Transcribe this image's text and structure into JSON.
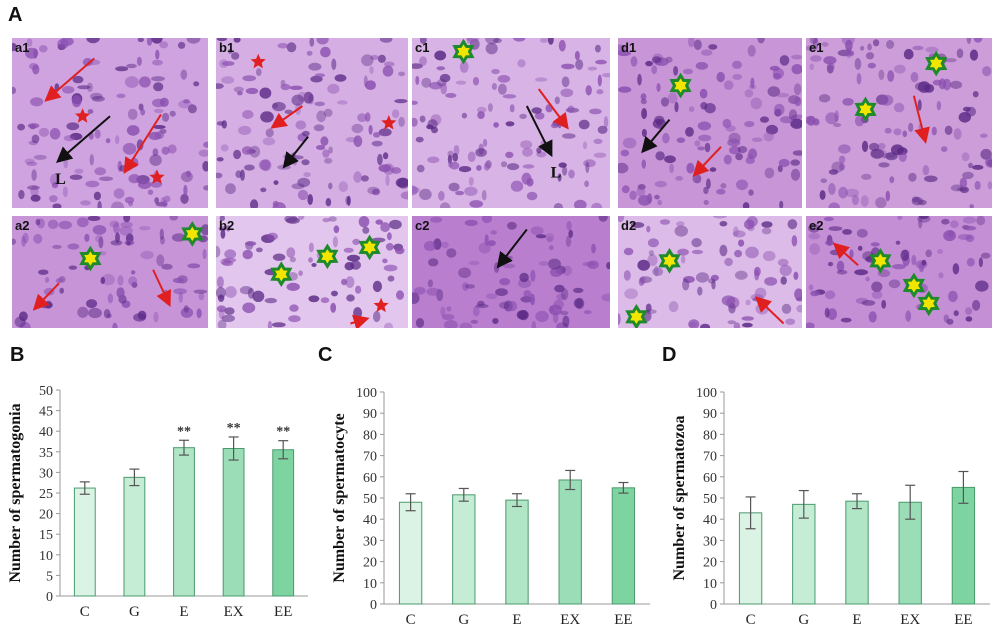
{
  "figure": {
    "panel_letters": [
      "A",
      "B",
      "C",
      "D"
    ],
    "micrographs": [
      {
        "label": "a1",
        "tint": "#cfa3df",
        "annotations": [
          {
            "type": "arrow-red"
          },
          {
            "type": "arrow-red"
          },
          {
            "type": "arrow-black"
          },
          {
            "type": "star-red"
          },
          {
            "type": "star-red"
          },
          {
            "type": "letter",
            "text": "L"
          }
        ]
      },
      {
        "label": "b1",
        "tint": "#d5aee3",
        "annotations": [
          {
            "type": "star-red"
          },
          {
            "type": "star-red"
          },
          {
            "type": "arrow-red"
          },
          {
            "type": "arrow-black"
          }
        ]
      },
      {
        "label": "c1",
        "tint": "#d8b3e5",
        "annotations": [
          {
            "type": "star-green"
          },
          {
            "type": "arrow-red"
          },
          {
            "type": "arrow-black"
          },
          {
            "type": "letter",
            "text": "L"
          }
        ]
      },
      {
        "label": "d1",
        "tint": "#c895d6",
        "annotations": [
          {
            "type": "star-green"
          },
          {
            "type": "arrow-black"
          },
          {
            "type": "arrow-red"
          }
        ]
      },
      {
        "label": "e1",
        "tint": "#cc9dd8",
        "annotations": [
          {
            "type": "star-green"
          },
          {
            "type": "star-green"
          },
          {
            "type": "arrow-red"
          }
        ]
      },
      {
        "label": "a2",
        "tint": "#c794d8",
        "annotations": [
          {
            "type": "star-green"
          },
          {
            "type": "star-green"
          },
          {
            "type": "arrow-red"
          },
          {
            "type": "arrow-red"
          }
        ]
      },
      {
        "label": "b2",
        "tint": "#e3c6ee",
        "annotations": [
          {
            "type": "star-green"
          },
          {
            "type": "star-green"
          },
          {
            "type": "star-green"
          },
          {
            "type": "star-red"
          },
          {
            "type": "arrow-red"
          }
        ]
      },
      {
        "label": "c2",
        "tint": "#b97fce",
        "annotations": [
          {
            "type": "arrow-black"
          }
        ]
      },
      {
        "label": "d2",
        "tint": "#dcbbe8",
        "annotations": [
          {
            "type": "star-green"
          },
          {
            "type": "star-green"
          },
          {
            "type": "arrow-red"
          }
        ]
      },
      {
        "label": "e2",
        "tint": "#c48fd5",
        "annotations": [
          {
            "type": "star-green"
          },
          {
            "type": "star-green"
          },
          {
            "type": "star-green"
          },
          {
            "type": "arrow-red"
          }
        ]
      }
    ],
    "colors": {
      "bar_fill": "#6fcf97",
      "bar_stroke": "#4a9a6c",
      "error_bar": "#555555",
      "axis": "#999999"
    }
  },
  "chart_data": [
    {
      "type": "bar",
      "panel": "B",
      "title": "",
      "xlabel": "",
      "ylabel": "Number of spermatogonia",
      "categories": [
        "C",
        "G",
        "E",
        "EX",
        "EE"
      ],
      "values": [
        26.2,
        28.8,
        36.0,
        35.8,
        35.5
      ],
      "errors": [
        1.5,
        2.0,
        1.8,
        2.8,
        2.2
      ],
      "annotations": [
        "",
        "",
        "**",
        "**",
        "**"
      ],
      "fill_opacity": [
        0.25,
        0.4,
        0.55,
        0.7,
        0.9
      ],
      "ylim": [
        0,
        50
      ],
      "yticks": [
        0,
        5,
        10,
        15,
        20,
        25,
        30,
        35,
        40,
        45,
        50
      ],
      "grid": false
    },
    {
      "type": "bar",
      "panel": "C",
      "title": "",
      "xlabel": "",
      "ylabel": "Number of spermatocyte",
      "categories": [
        "C",
        "G",
        "E",
        "EX",
        "EE"
      ],
      "values": [
        48,
        51.5,
        49,
        58.5,
        54.8
      ],
      "errors": [
        4,
        3,
        3,
        4.5,
        2.5
      ],
      "annotations": [
        "",
        "",
        "",
        "",
        ""
      ],
      "fill_opacity": [
        0.25,
        0.4,
        0.55,
        0.7,
        0.9
      ],
      "ylim": [
        0,
        100
      ],
      "yticks": [
        0,
        10,
        20,
        30,
        40,
        50,
        60,
        70,
        80,
        90,
        100
      ],
      "grid": false
    },
    {
      "type": "bar",
      "panel": "D",
      "title": "",
      "xlabel": "",
      "ylabel": "Number of spermatozoa",
      "categories": [
        "C",
        "G",
        "E",
        "EX",
        "EE"
      ],
      "values": [
        43,
        47,
        48.5,
        48,
        55
      ],
      "errors": [
        7.5,
        6.5,
        3.5,
        8,
        7.5
      ],
      "annotations": [
        "",
        "",
        "",
        "",
        ""
      ],
      "fill_opacity": [
        0.25,
        0.4,
        0.55,
        0.7,
        0.9
      ],
      "ylim": [
        0,
        100
      ],
      "yticks": [
        0,
        10,
        20,
        30,
        40,
        50,
        60,
        70,
        80,
        90,
        100
      ],
      "grid": false
    }
  ]
}
